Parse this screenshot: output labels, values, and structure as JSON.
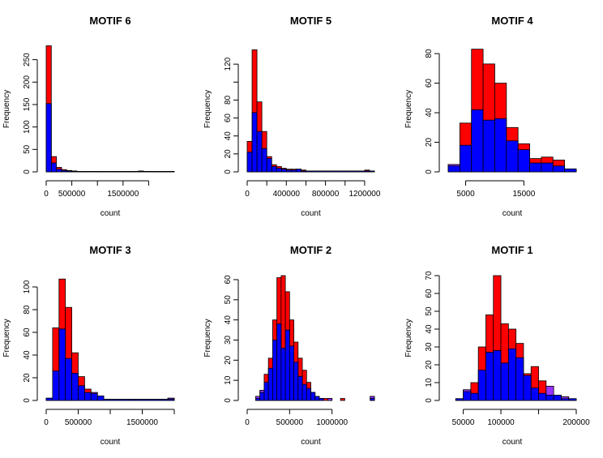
{
  "colors": {
    "series1": "#ff0000",
    "series2": "#0000ff",
    "overlap": "#9933ff",
    "stroke": "#000000"
  },
  "chart_data": [
    {
      "type": "histogram",
      "title": "MOTIF 6",
      "xlabel": "count",
      "ylabel": "Frequency",
      "xlim": [
        0,
        2500000
      ],
      "ylim": [
        0,
        280
      ],
      "x_ticks": [
        0,
        500000,
        1000000,
        1500000,
        2000000
      ],
      "x_tick_labels": [
        "0",
        "500000",
        "",
        "1500000",
        ""
      ],
      "y_ticks": [
        0,
        50,
        100,
        150,
        200,
        250
      ],
      "y_tick_labels": [
        "0",
        "50",
        "100",
        "150",
        "200",
        "250"
      ],
      "bin_edges": [
        0,
        100000,
        200000,
        300000,
        400000,
        500000,
        600000,
        700000,
        800000,
        900000,
        1000000,
        1100000,
        1200000,
        1300000,
        1400000,
        1500000,
        1600000,
        1700000,
        1800000,
        1900000,
        2000000,
        2100000,
        2200000,
        2300000,
        2400000,
        2500000
      ],
      "series": [
        {
          "name": "",
          "color": "red",
          "values": [
            281,
            34,
            10,
            5,
            3,
            2,
            1,
            1,
            1,
            1,
            1,
            1,
            1,
            1,
            1,
            1,
            1,
            1,
            2,
            1,
            1,
            1,
            1,
            1,
            1
          ]
        },
        {
          "name": "",
          "color": "blue",
          "values": [
            152,
            20,
            6,
            3,
            2,
            1,
            1,
            1,
            1,
            1,
            1,
            1,
            1,
            1,
            1,
            1,
            1,
            1,
            1,
            1,
            1,
            1,
            1,
            1,
            1
          ]
        }
      ]
    },
    {
      "type": "histogram",
      "title": "MOTIF 5",
      "xlabel": "count",
      "ylabel": "Frequency",
      "xlim": [
        0,
        1300000
      ],
      "ylim": [
        0,
        140
      ],
      "x_ticks": [
        0,
        200000,
        400000,
        600000,
        800000,
        1000000,
        1200000
      ],
      "x_tick_labels": [
        "0",
        "",
        "400000",
        "",
        "800000",
        "",
        "1200000"
      ],
      "y_ticks": [
        0,
        20,
        40,
        60,
        80,
        100,
        120
      ],
      "y_tick_labels": [
        "0",
        "20",
        "40",
        "60",
        "80",
        "",
        "120"
      ],
      "bin_edges": [
        0,
        50000,
        100000,
        150000,
        200000,
        250000,
        300000,
        350000,
        400000,
        450000,
        500000,
        550000,
        600000,
        650000,
        700000,
        750000,
        800000,
        850000,
        900000,
        950000,
        1000000,
        1050000,
        1100000,
        1150000,
        1200000,
        1250000,
        1300000
      ],
      "series": [
        {
          "name": "",
          "color": "red",
          "values": [
            34,
            136,
            78,
            45,
            17,
            8,
            6,
            4,
            3,
            3,
            3,
            2,
            1,
            1,
            1,
            1,
            1,
            1,
            1,
            1,
            1,
            1,
            1,
            1,
            2,
            1
          ]
        },
        {
          "name": "",
          "color": "blue",
          "values": [
            22,
            66,
            45,
            26,
            15,
            6,
            4,
            3,
            2,
            2,
            3,
            1,
            1,
            1,
            1,
            1,
            1,
            1,
            1,
            1,
            1,
            1,
            1,
            1,
            1,
            1
          ]
        }
      ]
    },
    {
      "type": "histogram",
      "title": "MOTIF 4",
      "xlabel": "count",
      "ylabel": "Frequency",
      "xlim": [
        2000,
        24000
      ],
      "ylim": [
        0,
        85
      ],
      "x_ticks": [
        5000,
        15000
      ],
      "x_tick_labels": [
        "5000",
        "15000"
      ],
      "y_ticks": [
        0,
        20,
        40,
        60,
        80
      ],
      "y_tick_labels": [
        "0",
        "20",
        "40",
        "60",
        "80"
      ],
      "bin_edges": [
        2000,
        4000,
        6000,
        8000,
        10000,
        12000,
        14000,
        16000,
        18000,
        20000,
        22000,
        24000
      ],
      "series": [
        {
          "name": "",
          "color": "red",
          "values": [
            4,
            33,
            83,
            73,
            60,
            30,
            19,
            9,
            10,
            8,
            2
          ]
        },
        {
          "name": "",
          "color": "blue",
          "values": [
            5,
            18,
            42,
            35,
            36,
            21,
            15,
            6,
            6,
            4,
            2
          ]
        }
      ]
    },
    {
      "type": "histogram",
      "title": "MOTIF 3",
      "xlabel": "count",
      "ylabel": "Frequency",
      "xlim": [
        0,
        2000000
      ],
      "ylim": [
        0,
        110
      ],
      "x_ticks": [
        0,
        500000,
        1000000,
        1500000,
        2000000
      ],
      "x_tick_labels": [
        "0",
        "500000",
        "",
        "1500000",
        ""
      ],
      "y_ticks": [
        0,
        20,
        40,
        60,
        80,
        100
      ],
      "y_tick_labels": [
        "0",
        "20",
        "40",
        "60",
        "80",
        "100"
      ],
      "bin_edges": [
        0,
        100000,
        200000,
        300000,
        400000,
        500000,
        600000,
        700000,
        800000,
        900000,
        1000000,
        1100000,
        1200000,
        1300000,
        1400000,
        1500000,
        1600000,
        1700000,
        1800000,
        1900000,
        2000000
      ],
      "series": [
        {
          "name": "",
          "color": "red",
          "values": [
            2,
            64,
            107,
            82,
            42,
            21,
            10,
            6,
            4,
            1,
            1,
            1,
            1,
            1,
            1,
            1,
            1,
            1,
            1,
            1
          ]
        },
        {
          "name": "",
          "color": "blue",
          "values": [
            2,
            26,
            63,
            37,
            24,
            13,
            7,
            7,
            4,
            1,
            1,
            1,
            1,
            1,
            1,
            1,
            1,
            1,
            1,
            2
          ]
        }
      ]
    },
    {
      "type": "histogram",
      "title": "MOTIF 2",
      "xlabel": "count",
      "ylabel": "Frequency",
      "xlim": [
        0,
        1500000
      ],
      "ylim": [
        0,
        62
      ],
      "x_ticks": [
        0,
        500000,
        1000000
      ],
      "x_tick_labels": [
        "0",
        "500000",
        "1000000"
      ],
      "y_ticks": [
        0,
        10,
        20,
        30,
        40,
        50,
        60
      ],
      "y_tick_labels": [
        "0",
        "10",
        "20",
        "30",
        "40",
        "50",
        "60"
      ],
      "bin_edges": [
        0,
        50000,
        100000,
        150000,
        200000,
        250000,
        300000,
        350000,
        400000,
        450000,
        500000,
        550000,
        600000,
        650000,
        700000,
        750000,
        800000,
        850000,
        900000,
        950000,
        1000000,
        1050000,
        1100000,
        1150000,
        1200000,
        1250000,
        1300000,
        1350000,
        1400000,
        1450000,
        1500000
      ],
      "series": [
        {
          "name": "",
          "color": "red",
          "values": [
            0,
            0,
            1,
            4,
            13,
            21,
            40,
            61,
            62,
            54,
            40,
            29,
            21,
            15,
            9,
            4,
            2,
            1,
            1,
            0,
            0,
            0,
            1,
            0,
            0,
            0,
            0,
            0,
            0,
            1
          ]
        },
        {
          "name": "",
          "color": "blue",
          "values": [
            0,
            0,
            2,
            5,
            9,
            16,
            30,
            38,
            26,
            35,
            27,
            19,
            12,
            8,
            6,
            4,
            2,
            1,
            0,
            1,
            0,
            0,
            0,
            0,
            0,
            0,
            0,
            0,
            0,
            2
          ]
        }
      ]
    },
    {
      "type": "histogram",
      "title": "MOTIF 1",
      "xlabel": "count",
      "ylabel": "Frequency",
      "xlim": [
        30000,
        200000
      ],
      "ylim": [
        0,
        70
      ],
      "x_ticks": [
        50000,
        100000,
        150000,
        200000
      ],
      "x_tick_labels": [
        "50000",
        "100000",
        "",
        "200000"
      ],
      "y_ticks": [
        0,
        10,
        20,
        30,
        40,
        50,
        60,
        70
      ],
      "y_tick_labels": [
        "0",
        "10",
        "20",
        "30",
        "40",
        "50",
        "60",
        "70"
      ],
      "bin_edges": [
        30000,
        40000,
        50000,
        60000,
        70000,
        80000,
        90000,
        100000,
        110000,
        120000,
        130000,
        140000,
        150000,
        160000,
        170000,
        180000,
        190000,
        200000
      ],
      "series": [
        {
          "name": "",
          "color": "red",
          "values": [
            0,
            1,
            5,
            10,
            30,
            48,
            70,
            43,
            40,
            32,
            15,
            19,
            11,
            3,
            3,
            1,
            1
          ]
        },
        {
          "name": "",
          "color": "blue",
          "values": [
            0,
            1,
            6,
            4,
            17,
            27,
            28,
            21,
            29,
            24,
            14,
            7,
            4,
            8,
            3,
            2,
            1
          ]
        }
      ]
    }
  ]
}
